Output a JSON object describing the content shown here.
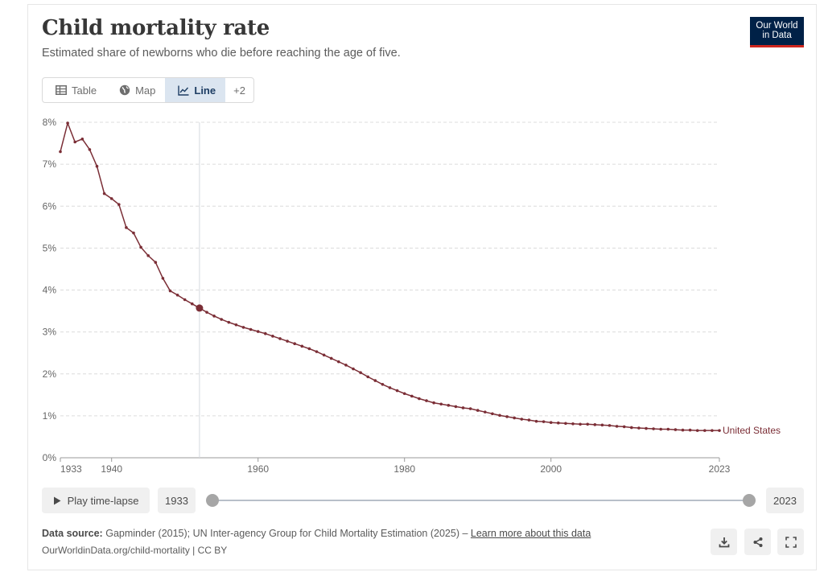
{
  "header": {
    "title": "Child mortality rate",
    "subtitle": "Estimated share of newborns who die before reaching the age of five.",
    "logo_line1": "Our World",
    "logo_line2": "in Data"
  },
  "tabs": [
    {
      "label": "Table",
      "icon": "table-icon",
      "active": false
    },
    {
      "label": "Map",
      "icon": "globe-icon",
      "active": false
    },
    {
      "label": "Line",
      "icon": "line-chart-icon",
      "active": true
    },
    {
      "label": "+2",
      "icon": "",
      "active": false
    }
  ],
  "timeline": {
    "play_label": "Play time-lapse",
    "start_year": "1933",
    "end_year": "2023"
  },
  "footer": {
    "source_label": "Data source:",
    "source_text": "Gapminder (2015); UN Inter-agency Group for Child Mortality Estimation (2025) –",
    "learn_more": "Learn more about this data",
    "url": "OurWorldinData.org/child-mortality | CC BY"
  },
  "actions": [
    {
      "name": "download-icon"
    },
    {
      "name": "share-icon"
    },
    {
      "name": "fullscreen-icon"
    }
  ],
  "colors": {
    "series": "#7b2e36",
    "grid": "#dcdcdc",
    "brand": "#002147",
    "brand_accent": "#ce261e",
    "active_tab": "#dbe5f0"
  },
  "chart_data": {
    "type": "line",
    "title": "Child mortality rate",
    "subtitle": "Estimated share of newborns who die before reaching the age of five.",
    "xlabel": "",
    "ylabel": "",
    "xlim": [
      1933,
      2023
    ],
    "ylim": [
      0,
      8
    ],
    "y_ticks": [
      0,
      1,
      2,
      3,
      4,
      5,
      6,
      7,
      8
    ],
    "y_tick_labels": [
      "0%",
      "1%",
      "2%",
      "3%",
      "4%",
      "5%",
      "6%",
      "7%",
      "8%"
    ],
    "x_ticks": [
      1933,
      1940,
      1960,
      1980,
      2000,
      2023
    ],
    "x_tick_labels": [
      "1933",
      "1940",
      "1960",
      "1980",
      "2000",
      "2023"
    ],
    "grid": true,
    "highlight_year": 1952,
    "series": [
      {
        "name": "United States",
        "x": [
          1933,
          1934,
          1935,
          1936,
          1937,
          1938,
          1939,
          1940,
          1941,
          1942,
          1943,
          1944,
          1945,
          1946,
          1947,
          1948,
          1949,
          1950,
          1951,
          1952,
          1953,
          1954,
          1955,
          1956,
          1957,
          1958,
          1959,
          1960,
          1961,
          1962,
          1963,
          1964,
          1965,
          1966,
          1967,
          1968,
          1969,
          1970,
          1971,
          1972,
          1973,
          1974,
          1975,
          1976,
          1977,
          1978,
          1979,
          1980,
          1981,
          1982,
          1983,
          1984,
          1985,
          1986,
          1987,
          1988,
          1989,
          1990,
          1991,
          1992,
          1993,
          1994,
          1995,
          1996,
          1997,
          1998,
          1999,
          2000,
          2001,
          2002,
          2003,
          2004,
          2005,
          2006,
          2007,
          2008,
          2009,
          2010,
          2011,
          2012,
          2013,
          2014,
          2015,
          2016,
          2017,
          2018,
          2019,
          2020,
          2021,
          2022,
          2023
        ],
        "y": [
          7.3,
          7.98,
          7.53,
          7.6,
          7.35,
          6.95,
          6.3,
          6.18,
          6.04,
          5.49,
          5.36,
          5.02,
          4.82,
          4.66,
          4.28,
          3.98,
          3.88,
          3.77,
          3.67,
          3.57,
          3.47,
          3.38,
          3.3,
          3.23,
          3.17,
          3.11,
          3.06,
          3.01,
          2.96,
          2.9,
          2.84,
          2.78,
          2.72,
          2.66,
          2.6,
          2.53,
          2.45,
          2.37,
          2.29,
          2.21,
          2.12,
          2.03,
          1.93,
          1.84,
          1.75,
          1.67,
          1.6,
          1.53,
          1.47,
          1.41,
          1.36,
          1.31,
          1.28,
          1.25,
          1.22,
          1.19,
          1.17,
          1.13,
          1.09,
          1.05,
          1.01,
          0.98,
          0.95,
          0.92,
          0.9,
          0.87,
          0.86,
          0.84,
          0.83,
          0.82,
          0.81,
          0.8,
          0.8,
          0.79,
          0.78,
          0.77,
          0.75,
          0.74,
          0.72,
          0.71,
          0.7,
          0.69,
          0.68,
          0.68,
          0.67,
          0.66,
          0.66,
          0.65,
          0.65,
          0.65,
          0.65
        ]
      }
    ]
  }
}
